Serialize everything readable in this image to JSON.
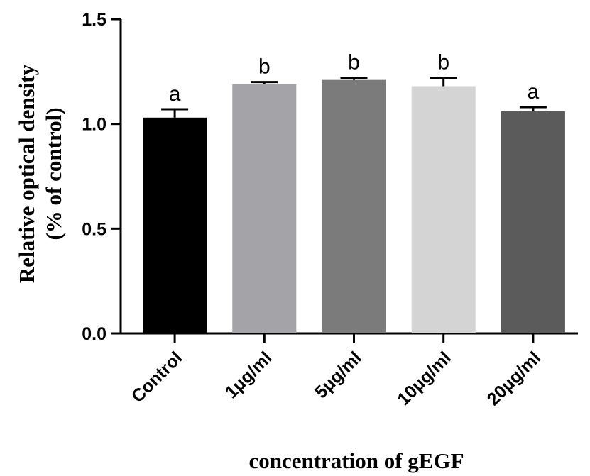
{
  "chart_data": {
    "type": "bar",
    "title": "",
    "xlabel": "concentration of gEGF",
    "ylabel_line1": "Relative optical density",
    "ylabel_line2": "(% of control)",
    "categories": [
      "Control",
      "1μg/ml",
      "5μg/ml",
      "10μg/ml",
      "20μg/ml"
    ],
    "values": [
      1.03,
      1.19,
      1.21,
      1.18,
      1.06
    ],
    "errors": [
      0.04,
      0.01,
      0.01,
      0.04,
      0.02
    ],
    "significance": [
      "a",
      "b",
      "b",
      "b",
      "a"
    ],
    "colors": [
      "#000000",
      "#a3a3a8",
      "#7b7b7b",
      "#d4d4d4",
      "#5b5b5b"
    ],
    "ylim": [
      0,
      1.5
    ],
    "yticks": [
      0.0,
      0.5,
      1.0,
      1.5
    ],
    "ytick_labels": [
      "0.0",
      "0.5",
      "1.0",
      "1.5"
    ],
    "grid": false,
    "legend": "none"
  }
}
